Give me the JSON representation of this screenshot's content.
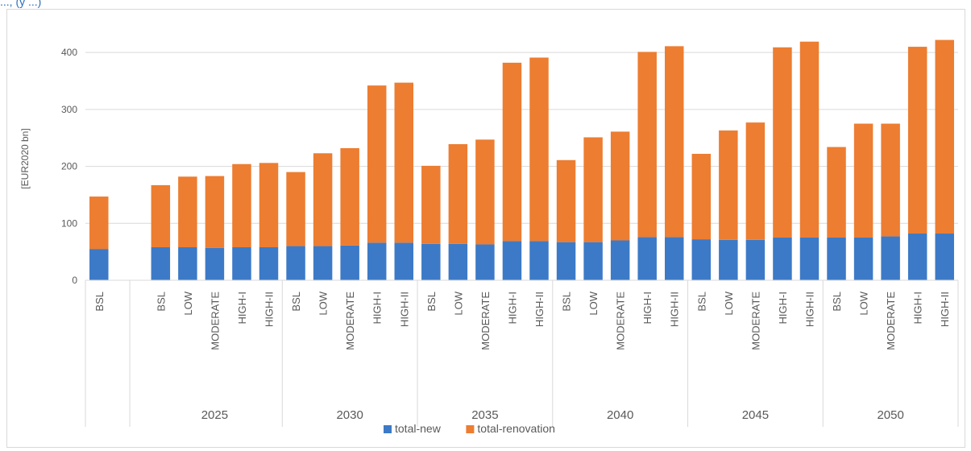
{
  "top_fragment": "..., (y ...)",
  "colors": {
    "new": "#3c7ac7",
    "renovation": "#ed7d31",
    "grid": "#d9d9d9",
    "axis_text": "#595959"
  },
  "chart_data": {
    "type": "bar",
    "stacked": true,
    "ylabel": "[EUR2020 bn]",
    "ylim": [
      0,
      420
    ],
    "yticks": [
      0,
      100,
      200,
      300,
      400
    ],
    "grid": true,
    "legend_position": "bottom",
    "groups": [
      {
        "label": "",
        "categories": [
          "BSL"
        ]
      },
      {
        "label": "2025",
        "categories": [
          "BSL",
          "LOW",
          "MODERATE",
          "HIGH-I",
          "HIGH-II"
        ]
      },
      {
        "label": "2030",
        "categories": [
          "BSL",
          "LOW",
          "MODERATE",
          "HIGH-I",
          "HIGH-II"
        ]
      },
      {
        "label": "2035",
        "categories": [
          "BSL",
          "LOW",
          "MODERATE",
          "HIGH-I",
          "HIGH-II"
        ]
      },
      {
        "label": "2040",
        "categories": [
          "BSL",
          "LOW",
          "MODERATE",
          "HIGH-I",
          "HIGH-II"
        ]
      },
      {
        "label": "2045",
        "categories": [
          "BSL",
          "LOW",
          "MODERATE",
          "HIGH-I",
          "HIGH-II"
        ]
      },
      {
        "label": "2050",
        "categories": [
          "BSL",
          "LOW",
          "MODERATE",
          "HIGH-I",
          "HIGH-II"
        ]
      }
    ],
    "series": [
      {
        "name": "total-new",
        "values": [
          55,
          58,
          58,
          57,
          58,
          58,
          60,
          60,
          61,
          66,
          66,
          64,
          64,
          63,
          69,
          69,
          67,
          67,
          70,
          76,
          76,
          72,
          71,
          71,
          75,
          75,
          75,
          75,
          77,
          82,
          82
        ]
      },
      {
        "name": "total-renovation",
        "values": [
          92,
          109,
          124,
          126,
          146,
          148,
          130,
          163,
          171,
          276,
          281,
          137,
          175,
          184,
          313,
          322,
          144,
          184,
          191,
          325,
          335,
          150,
          192,
          206,
          334,
          344,
          159,
          200,
          198,
          328,
          340
        ]
      }
    ]
  }
}
